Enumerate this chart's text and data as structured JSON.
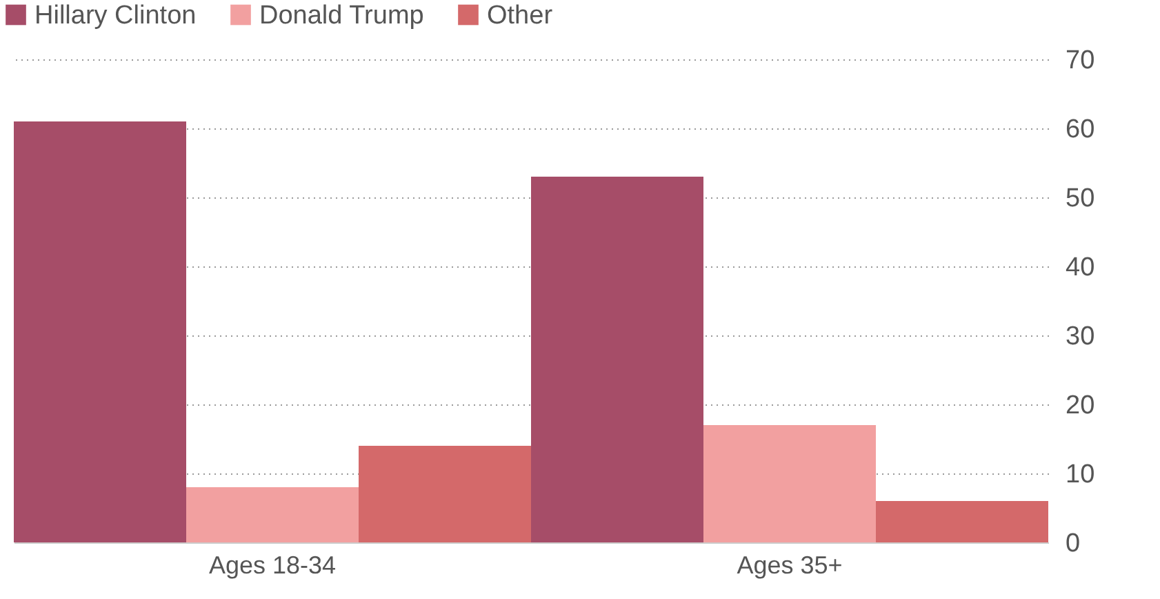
{
  "chart_data": {
    "type": "bar",
    "categories": [
      "Ages 18-34",
      "Ages 35+"
    ],
    "series": [
      {
        "name": "Hillary Clinton",
        "color": "#a64d68",
        "values": [
          61,
          53
        ]
      },
      {
        "name": "Donald Trump",
        "color": "#f2a0a0",
        "values": [
          8,
          17
        ]
      },
      {
        "name": "Other",
        "color": "#d4696a",
        "values": [
          14,
          6
        ]
      }
    ],
    "ylim": [
      0,
      70
    ],
    "yticks": [
      0,
      10,
      20,
      30,
      40,
      50,
      60,
      70
    ],
    "grid": "y",
    "legend": "top left"
  }
}
